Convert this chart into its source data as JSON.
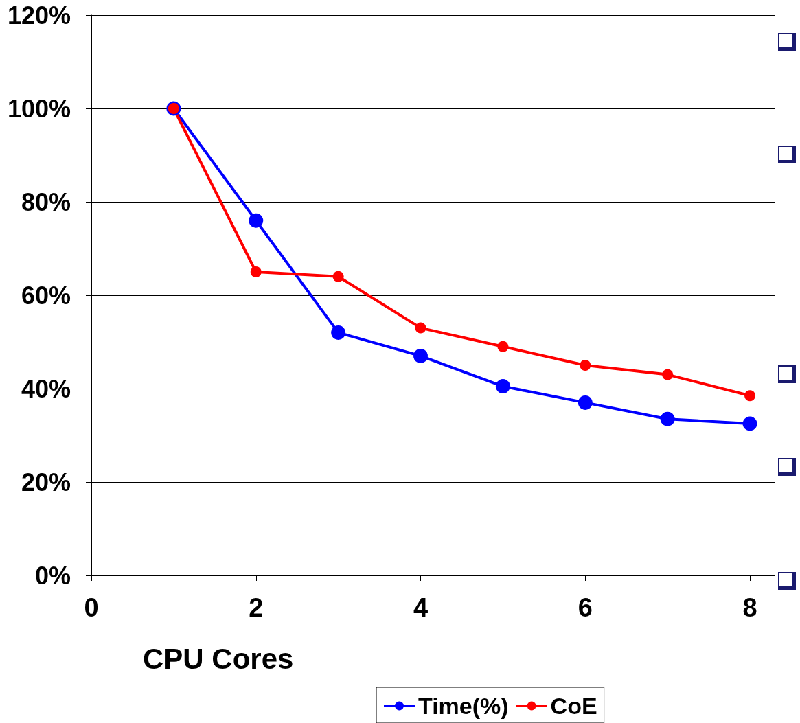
{
  "chart_data": {
    "type": "line",
    "xlabel": "CPU Cores",
    "x": [
      1,
      2,
      3,
      4,
      5,
      6,
      7,
      8
    ],
    "series": [
      {
        "name": "Time(%)",
        "color": "#0000ff",
        "values": [
          100,
          76,
          52,
          47,
          40.5,
          37,
          33.5,
          32.5
        ]
      },
      {
        "name": "CoE",
        "color": "#ff0000",
        "values": [
          100,
          65,
          64,
          53,
          49,
          45,
          43,
          38.5
        ]
      }
    ],
    "xlim": [
      0,
      8.3
    ],
    "xticks": [
      0,
      2,
      4,
      6,
      8
    ],
    "ylim": [
      0,
      120
    ],
    "yticks": [
      {
        "value": 0,
        "label": "0%"
      },
      {
        "value": 20,
        "label": "20%"
      },
      {
        "value": 40,
        "label": "40%"
      },
      {
        "value": 60,
        "label": "60%"
      },
      {
        "value": 80,
        "label": "80%"
      },
      {
        "value": 100,
        "label": "100%"
      },
      {
        "value": 120,
        "label": "120%"
      }
    ],
    "grid": "y",
    "legend": "bottom",
    "marker": "circle",
    "line_style": "solid"
  }
}
